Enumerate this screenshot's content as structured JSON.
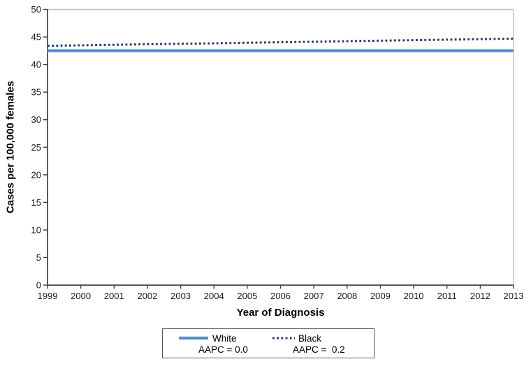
{
  "chart_data": {
    "type": "line",
    "title": "",
    "xlabel": "Year of Diagnosis",
    "ylabel": "Cases per 100,000 females",
    "x": [
      1999,
      2000,
      2001,
      2002,
      2003,
      2004,
      2005,
      2006,
      2007,
      2008,
      2009,
      2010,
      2011,
      2012,
      2013
    ],
    "ylim": [
      0,
      50
    ],
    "yticks": [
      0,
      5,
      10,
      15,
      20,
      25,
      30,
      35,
      40,
      45,
      50
    ],
    "grid": false,
    "legend_position": "bottom",
    "series": [
      {
        "name": "White",
        "aapc_label": "AAPC = 0.0",
        "style": "solid",
        "color": "#4a86c8",
        "values": [
          42.5,
          42.5,
          42.5,
          42.5,
          42.5,
          42.5,
          42.5,
          42.5,
          42.5,
          42.5,
          42.5,
          42.5,
          42.5,
          42.5,
          42.5
        ]
      },
      {
        "name": "Black",
        "aapc_label": "AAPC =  0.2",
        "style": "dotted",
        "color": "#1f3864",
        "values": [
          43.4,
          43.49,
          43.59,
          43.68,
          43.77,
          43.86,
          43.96,
          44.05,
          44.14,
          44.23,
          44.33,
          44.42,
          44.51,
          44.61,
          44.7
        ]
      }
    ]
  },
  "colors": {
    "axis": "#3f3f3f",
    "plot_border": "#bfbfbf",
    "tick_text": "#1a1a1a",
    "white_series": "#4a86c8",
    "white_series_halo": "#a9c7e8",
    "black_series": "#1f3864",
    "legend_border": "#595959"
  }
}
